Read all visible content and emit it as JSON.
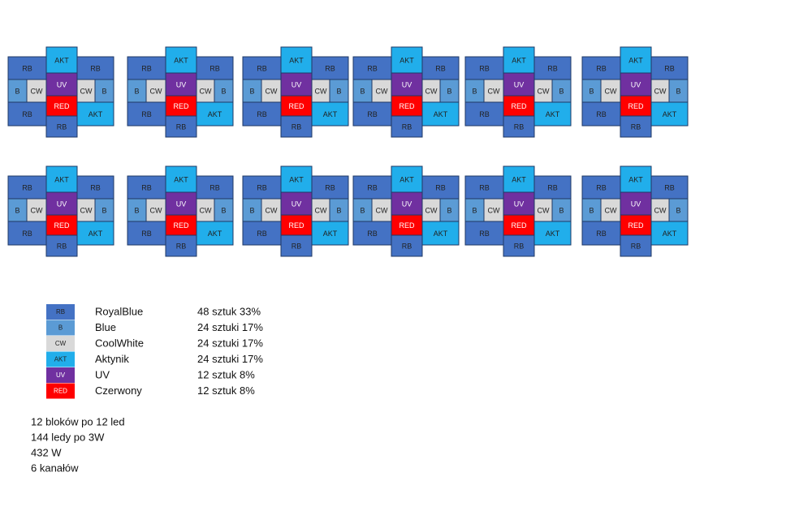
{
  "blocks": [
    [
      "RB",
      "AKT",
      "RB",
      "B",
      "CW",
      "UV",
      "CW",
      "B",
      "RED",
      "RB",
      "AKT",
      "RB"
    ],
    [
      "RB",
      "AKT",
      "RB",
      "B",
      "CW",
      "UV",
      "CW",
      "B",
      "RED",
      "RB",
      "AKT",
      "RB"
    ],
    [
      "RB",
      "AKT",
      "RB",
      "B",
      "CW",
      "UV",
      "CW",
      "B",
      "RED",
      "RB",
      "AKT",
      "RB"
    ],
    [
      "RB",
      "AKT",
      "RB",
      "B",
      "CW",
      "UV",
      "CW",
      "B",
      "RED",
      "RB",
      "AKT",
      "RB"
    ],
    [
      "RB",
      "AKT",
      "RB",
      "B",
      "CW",
      "UV",
      "CW",
      "B",
      "RED",
      "RB",
      "AKT",
      "RB"
    ],
    [
      "RB",
      "AKT",
      "RB",
      "B",
      "CW",
      "UV",
      "CW",
      "B",
      "RED",
      "RB",
      "AKT",
      "RB"
    ],
    [
      "RB",
      "AKT",
      "RB",
      "B",
      "CW",
      "UV",
      "CW",
      "B",
      "RED",
      "RB",
      "AKT",
      "RB"
    ],
    [
      "RB",
      "AKT",
      "RB",
      "B",
      "CW",
      "UV",
      "CW",
      "B",
      "RED",
      "RB",
      "AKT",
      "RB"
    ],
    [
      "RB",
      "AKT",
      "RB",
      "B",
      "CW",
      "UV",
      "CW",
      "B",
      "RED",
      "RB",
      "AKT",
      "RB"
    ],
    [
      "RB",
      "AKT",
      "RB",
      "B",
      "CW",
      "UV",
      "CW",
      "B",
      "RED",
      "RB",
      "AKT",
      "RB"
    ],
    [
      "RB",
      "AKT",
      "RB",
      "B",
      "CW",
      "UV",
      "CW",
      "B",
      "RED",
      "RB",
      "AKT",
      "RB"
    ],
    [
      "RB",
      "AKT",
      "RB",
      "B",
      "CW",
      "UV",
      "CW",
      "B",
      "RED",
      "RB",
      "AKT",
      "RB"
    ]
  ],
  "legend": [
    {
      "code": "RB",
      "name": "RoyalBlue",
      "count": "48 sztuk 33%"
    },
    {
      "code": "B",
      "name": "Blue",
      "count": "24 sztuki 17%"
    },
    {
      "code": "CW",
      "name": "CoolWhite",
      "count": "24 sztuki 17%"
    },
    {
      "code": "AKT",
      "name": "Aktynik",
      "count": "24 sztuki 17%"
    },
    {
      "code": "UV",
      "name": "UV",
      "count": "12 sztuk 8%"
    },
    {
      "code": "RED",
      "name": "Czerwony",
      "count": "12 sztuk 8%"
    }
  ],
  "notes": [
    "12 bloków po 12 led",
    "144 ledy po 3W",
    "432 W",
    "6 kanałów"
  ]
}
